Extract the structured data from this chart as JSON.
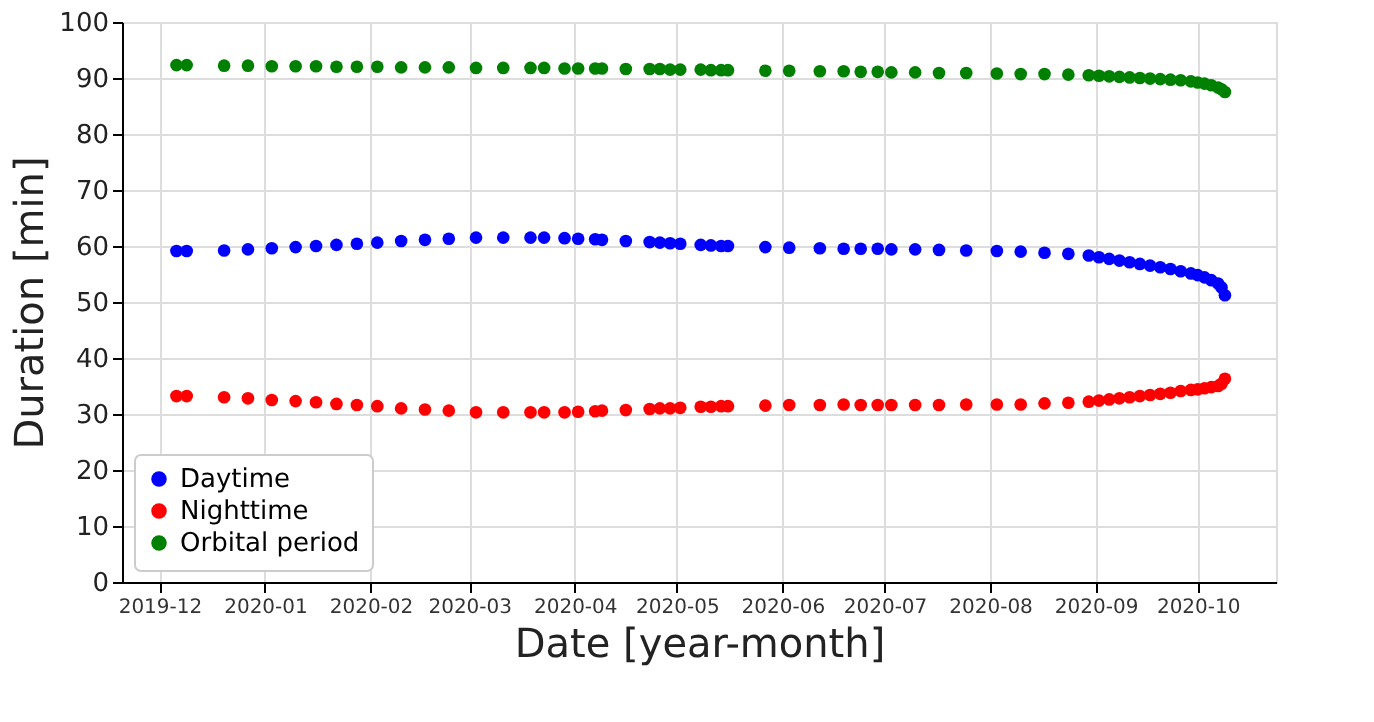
{
  "chart_data": {
    "type": "scatter",
    "xlabel": "Date [year-month]",
    "ylabel": "Duration [min]",
    "x": [
      "2019-12-06",
      "2019-12-09",
      "2019-12-20",
      "2019-12-27",
      "2020-01-03",
      "2020-01-10",
      "2020-01-16",
      "2020-01-22",
      "2020-01-28",
      "2020-02-03",
      "2020-02-10",
      "2020-02-17",
      "2020-02-24",
      "2020-03-03",
      "2020-03-11",
      "2020-03-19",
      "2020-03-23",
      "2020-03-29",
      "2020-04-02",
      "2020-04-07",
      "2020-04-09",
      "2020-04-16",
      "2020-04-23",
      "2020-04-26",
      "2020-04-29",
      "2020-05-02",
      "2020-05-08",
      "2020-05-11",
      "2020-05-14",
      "2020-05-16",
      "2020-05-27",
      "2020-06-03",
      "2020-06-12",
      "2020-06-19",
      "2020-06-24",
      "2020-06-29",
      "2020-07-03",
      "2020-07-10",
      "2020-07-17",
      "2020-07-25",
      "2020-08-03",
      "2020-08-10",
      "2020-08-17",
      "2020-08-24",
      "2020-08-30",
      "2020-09-02",
      "2020-09-05",
      "2020-09-08",
      "2020-09-11",
      "2020-09-14",
      "2020-09-17",
      "2020-09-20",
      "2020-09-23",
      "2020-09-26",
      "2020-09-29",
      "2020-10-01",
      "2020-10-03",
      "2020-10-05",
      "2020-10-07",
      "2020-10-08",
      "2020-10-09"
    ],
    "series": [
      {
        "name": "Daytime",
        "color": "#0000ff",
        "values": [
          59.1,
          59.1,
          59.2,
          59.4,
          59.6,
          59.8,
          60.0,
          60.2,
          60.4,
          60.6,
          60.9,
          61.1,
          61.3,
          61.5,
          61.5,
          61.5,
          61.5,
          61.4,
          61.3,
          61.2,
          61.1,
          60.9,
          60.7,
          60.6,
          60.5,
          60.4,
          60.2,
          60.1,
          60.0,
          60.0,
          59.8,
          59.7,
          59.6,
          59.5,
          59.5,
          59.5,
          59.4,
          59.4,
          59.3,
          59.2,
          59.1,
          59.0,
          58.8,
          58.6,
          58.3,
          58.0,
          57.7,
          57.4,
          57.1,
          56.8,
          56.5,
          56.2,
          55.9,
          55.5,
          55.1,
          54.8,
          54.4,
          53.9,
          53.3,
          52.6,
          51.2
        ]
      },
      {
        "name": "Nighttime",
        "color": "#ff0000",
        "values": [
          33.2,
          33.2,
          33.0,
          32.8,
          32.5,
          32.3,
          32.1,
          31.8,
          31.6,
          31.4,
          31.0,
          30.8,
          30.6,
          30.3,
          30.3,
          30.3,
          30.3,
          30.3,
          30.4,
          30.5,
          30.6,
          30.7,
          30.9,
          31.0,
          31.0,
          31.1,
          31.3,
          31.3,
          31.4,
          31.4,
          31.5,
          31.6,
          31.6,
          31.7,
          31.6,
          31.6,
          31.6,
          31.6,
          31.6,
          31.7,
          31.7,
          31.7,
          31.9,
          32.0,
          32.2,
          32.4,
          32.6,
          32.8,
          33.0,
          33.2,
          33.4,
          33.6,
          33.8,
          34.1,
          34.3,
          34.4,
          34.6,
          34.8,
          35.0,
          35.4,
          36.3
        ]
      },
      {
        "name": "Orbital period",
        "color": "#008000",
        "values": [
          92.3,
          92.3,
          92.2,
          92.2,
          92.1,
          92.1,
          92.1,
          92.0,
          92.0,
          92.0,
          91.9,
          91.9,
          91.9,
          91.8,
          91.8,
          91.8,
          91.8,
          91.7,
          91.7,
          91.7,
          91.7,
          91.6,
          91.6,
          91.6,
          91.5,
          91.5,
          91.5,
          91.4,
          91.4,
          91.4,
          91.3,
          91.3,
          91.2,
          91.2,
          91.1,
          91.1,
          91.0,
          91.0,
          90.9,
          90.9,
          90.8,
          90.7,
          90.7,
          90.6,
          90.5,
          90.4,
          90.3,
          90.2,
          90.1,
          90.0,
          89.9,
          89.8,
          89.7,
          89.6,
          89.4,
          89.2,
          89.0,
          88.7,
          88.3,
          88.0,
          87.5
        ]
      }
    ],
    "xlim": [
      "2019-11-20",
      "2020-10-24"
    ],
    "xticks": [
      "2019-12",
      "2020-01",
      "2020-02",
      "2020-03",
      "2020-04",
      "2020-05",
      "2020-06",
      "2020-07",
      "2020-08",
      "2020-09",
      "2020-10"
    ],
    "ylim": [
      0,
      100
    ],
    "yticks": [
      0,
      10,
      20,
      30,
      40,
      50,
      60,
      70,
      80,
      90,
      100
    ],
    "grid": true,
    "legend": "bottom left",
    "marker": "circle"
  }
}
